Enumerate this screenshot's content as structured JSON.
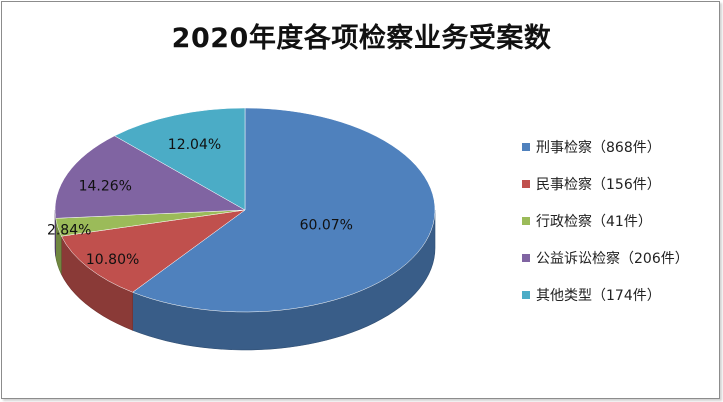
{
  "chart_data": {
    "type": "pie",
    "style": "3d",
    "title": "2020年度各项检察业务受案数",
    "slices": [
      {
        "legend": "刑事检察（868件）",
        "percent_label": "60.07%",
        "value": 868,
        "color": "#4F81BD"
      },
      {
        "legend": "民事检察（156件）",
        "percent_label": "10.80%",
        "value": 156,
        "color": "#C0504D"
      },
      {
        "legend": "行政检察（41件）",
        "percent_label": "2.84%",
        "value": 41,
        "color": "#9BBB59"
      },
      {
        "legend": "公益诉讼检察（206件）",
        "percent_label": "14.26%",
        "value": 206,
        "color": "#8064A2"
      },
      {
        "legend": "其他类型（174件）",
        "percent_label": "12.04%",
        "value": 174,
        "color": "#4BACC6"
      }
    ],
    "legend_position": "right"
  }
}
